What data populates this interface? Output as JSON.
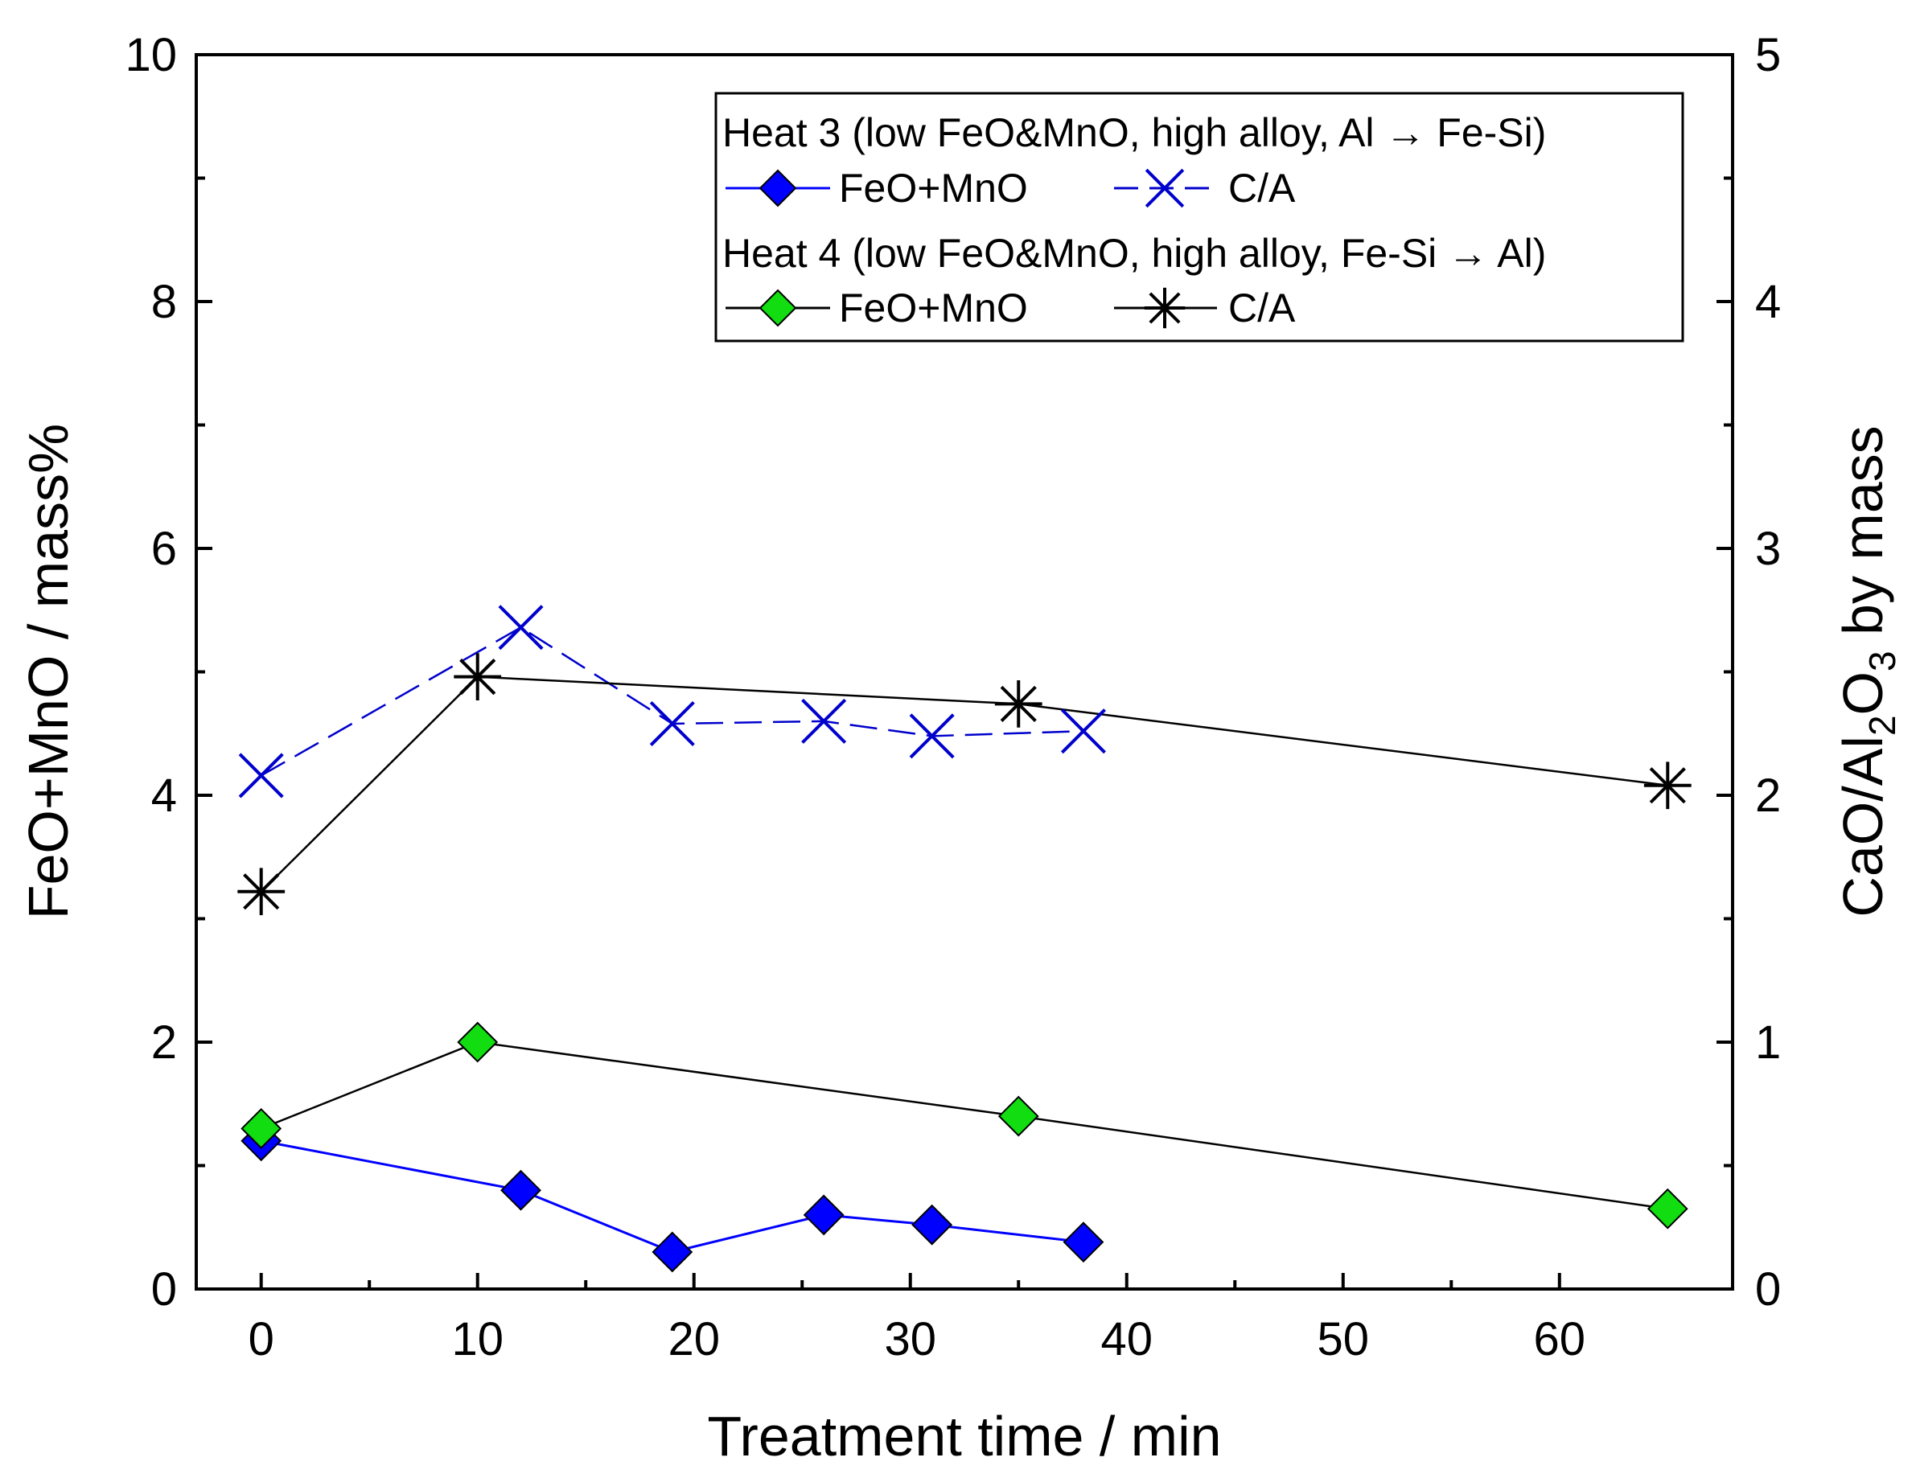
{
  "chart_data": {
    "type": "line",
    "title": "",
    "xlabel": "Treatment time / min",
    "ylabel": "FeO+MnO / mass%",
    "y2label": {
      "parts": [
        "CaO/Al",
        "2",
        "O",
        "3",
        " by mass"
      ]
    },
    "xlim": [
      -3,
      68
    ],
    "ylim": [
      0,
      10
    ],
    "y2lim": [
      0,
      5
    ],
    "x_ticks": [
      0,
      10,
      20,
      30,
      40,
      50,
      60
    ],
    "y_ticks": [
      0,
      2,
      4,
      6,
      8,
      10
    ],
    "y2_ticks": [
      0,
      1,
      2,
      3,
      4,
      5
    ],
    "grid": false,
    "legend": {
      "position": "top-right",
      "groups": [
        {
          "header": "Heat 3 (low FeO&MnO, high alloy, Al → Fe-Si)",
          "entries": [
            "FeO+MnO",
            "C/A"
          ]
        },
        {
          "header": "Heat 4 (low FeO&MnO, high alloy, Fe-Si → Al)",
          "entries": [
            "FeO+MnO",
            "C/A"
          ]
        }
      ]
    },
    "series": [
      {
        "name": "Heat 3 FeO+MnO",
        "axis": "left",
        "marker": "diamond",
        "color": "#0000FF",
        "marker_fill": "#0000FF",
        "line_style": "solid",
        "x": [
          0,
          12,
          19,
          26,
          31,
          38
        ],
        "y": [
          1.2,
          0.8,
          0.3,
          0.6,
          0.52,
          0.38
        ]
      },
      {
        "name": "Heat 3 C/A",
        "axis": "right",
        "marker": "x",
        "color": "#0000CC",
        "line_style": "dashed",
        "x": [
          0,
          12,
          19,
          26,
          31,
          38
        ],
        "y": [
          2.08,
          2.68,
          2.29,
          2.3,
          2.24,
          2.26
        ]
      },
      {
        "name": "Heat 4 FeO+MnO",
        "axis": "left",
        "marker": "diamond",
        "color": "#000000",
        "marker_fill": "#11DD11",
        "line_style": "solid",
        "x": [
          0,
          10,
          35,
          65
        ],
        "y": [
          1.3,
          2.0,
          1.4,
          0.65
        ]
      },
      {
        "name": "Heat 4 C/A",
        "axis": "right",
        "marker": "asterisk",
        "color": "#000000",
        "line_style": "solid",
        "x": [
          0,
          10,
          35,
          65
        ],
        "y": [
          1.61,
          2.48,
          2.37,
          2.04
        ]
      }
    ]
  }
}
